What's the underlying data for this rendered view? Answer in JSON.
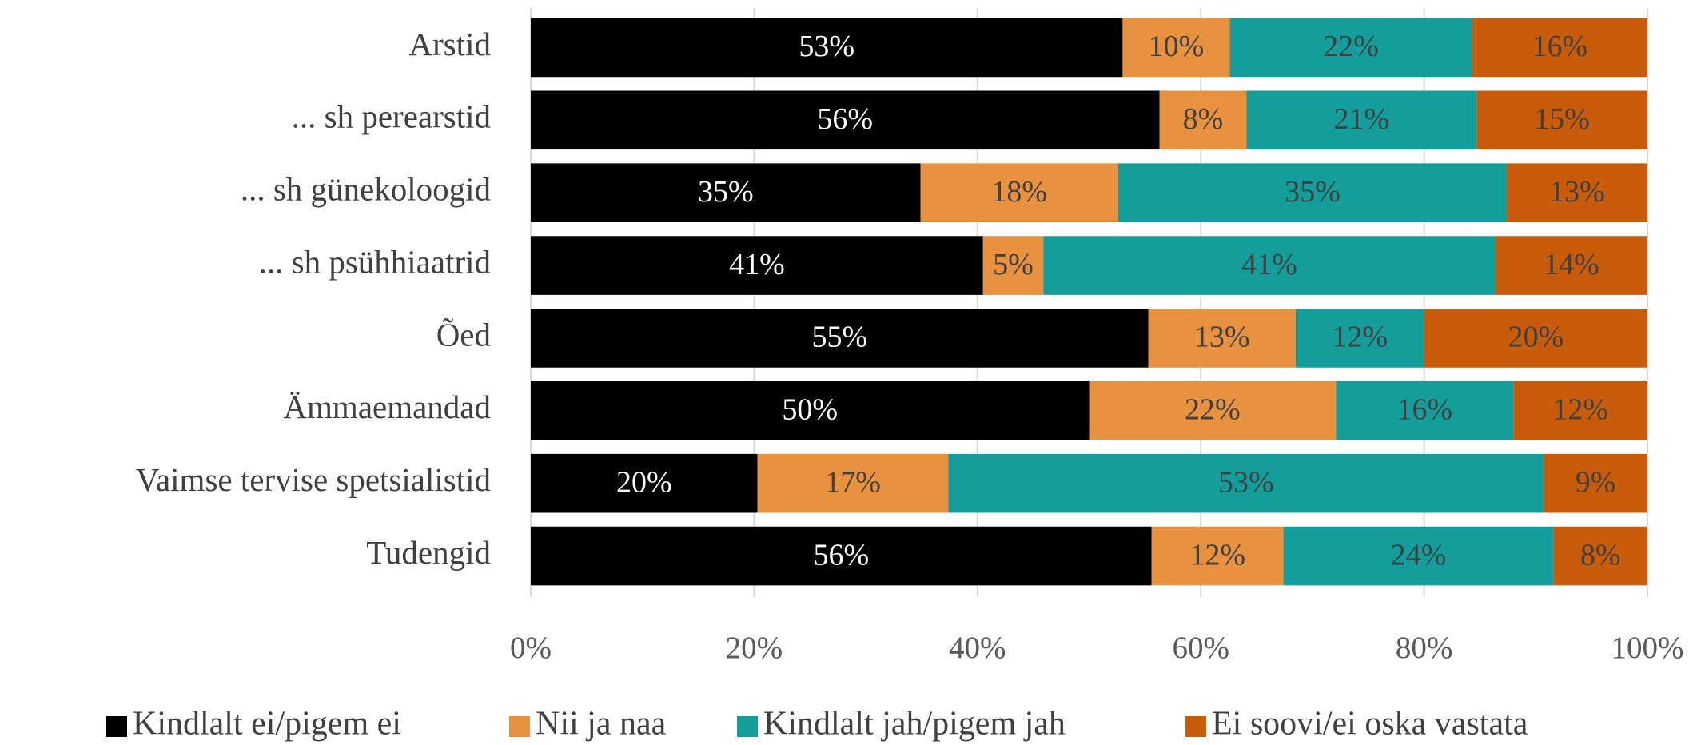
{
  "chart_data": {
    "type": "bar",
    "orientation": "horizontal",
    "stacked": true,
    "categories": [
      "Arstid",
      "... sh perearstid",
      "... sh günekoloogid",
      "... sh psühhiaatrid",
      "Õed",
      "Ämmaemandad",
      "Vaimse tervise spetsialistid",
      "Tudengid"
    ],
    "series": [
      {
        "name": "Kindlalt ei/pigem ei",
        "color": "#000000",
        "label_color": "#ffffff",
        "values": [
          53.0,
          56.3,
          34.9,
          40.5,
          55.3,
          50.0,
          20.3,
          55.6
        ],
        "value_labels": [
          "53%",
          "56%",
          "35%",
          "41%",
          "55%",
          "50%",
          "20%",
          "56%"
        ]
      },
      {
        "name": "Nii ja naa",
        "color": "#e8913f",
        "label_color": "#404040",
        "values": [
          9.6,
          7.8,
          17.7,
          5.4,
          13.2,
          22.1,
          17.1,
          11.8
        ],
        "value_labels": [
          "10%",
          "8%",
          "18%",
          "5%",
          "13%",
          "22%",
          "17%",
          "12%"
        ]
      },
      {
        "name": "Kindlalt jah/pigem jah",
        "color": "#139e9c",
        "label_color": "#404040",
        "values": [
          21.7,
          20.6,
          34.8,
          40.5,
          11.5,
          15.9,
          53.3,
          24.2
        ],
        "value_labels": [
          "22%",
          "21%",
          "35%",
          "41%",
          "12%",
          "16%",
          "53%",
          "24%"
        ]
      },
      {
        "name": "Ei soovi/ei oska vastata",
        "color": "#c95c0b",
        "label_color": "#404040",
        "values": [
          15.7,
          15.3,
          12.6,
          13.6,
          20.0,
          12.0,
          9.3,
          8.4
        ],
        "value_labels": [
          "16%",
          "15%",
          "13%",
          "14%",
          "20%",
          "12%",
          "9%",
          "8%"
        ]
      }
    ],
    "xlim": [
      0,
      100
    ],
    "xticks": [
      {
        "value": 0,
        "label": "0%"
      },
      {
        "value": 20,
        "label": "20%"
      },
      {
        "value": 40,
        "label": "40%"
      },
      {
        "value": 60,
        "label": "60%"
      },
      {
        "value": 80,
        "label": "80%"
      },
      {
        "value": 100,
        "label": "100%"
      }
    ],
    "grid": true,
    "legend": "bottom"
  }
}
